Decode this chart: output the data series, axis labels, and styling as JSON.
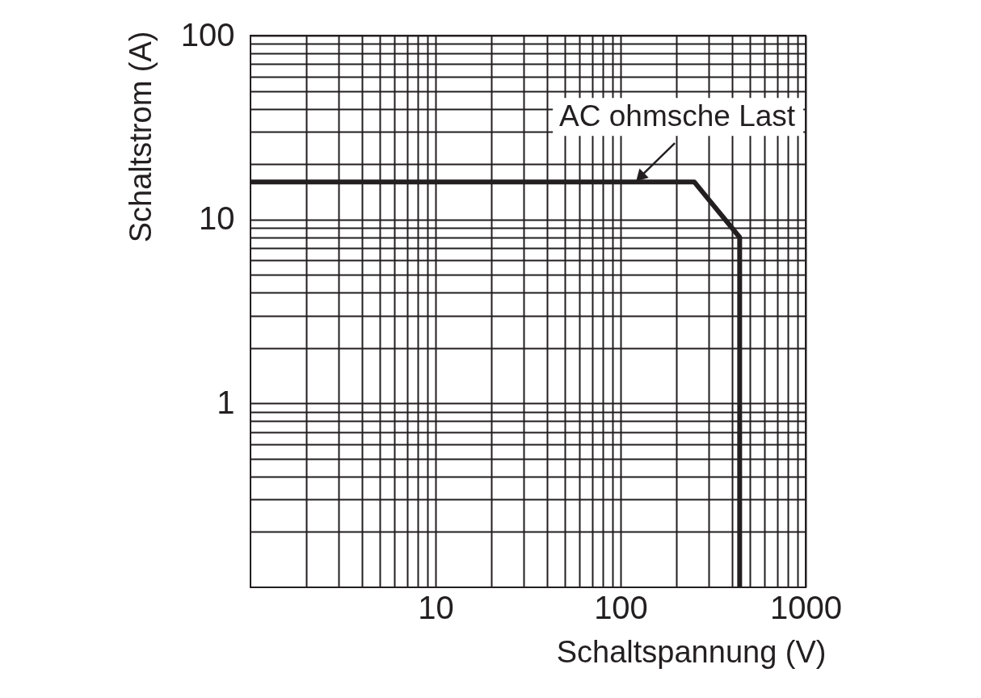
{
  "chart_data": {
    "type": "line",
    "xlabel": "Schaltspannung (V)",
    "ylabel": "Schaltstrom (A)",
    "log": "xy",
    "grid": true,
    "line_style": "solid",
    "x": [
      1,
      250,
      440,
      440
    ],
    "series": [
      {
        "color": "#231f20",
        "values": [
          16,
          16,
          8,
          0.1
        ]
      }
    ],
    "xlim": [
      1,
      1000
    ],
    "ylim": [
      0.1,
      100
    ],
    "xticks": [
      {
        "value": 2,
        "label": null
      },
      {
        "value": 3,
        "label": null
      },
      {
        "value": 4,
        "label": null
      },
      {
        "value": 5,
        "label": null
      },
      {
        "value": 6,
        "label": null
      },
      {
        "value": 7,
        "label": null
      },
      {
        "value": 8,
        "label": null
      },
      {
        "value": 9,
        "label": null
      },
      10,
      {
        "value": 20,
        "label": null
      },
      {
        "value": 30,
        "label": null
      },
      {
        "value": 40,
        "label": null
      },
      {
        "value": 50,
        "label": null
      },
      {
        "value": 60,
        "label": null
      },
      {
        "value": 70,
        "label": null
      },
      {
        "value": 80,
        "label": null
      },
      {
        "value": 90,
        "label": null
      },
      100,
      {
        "value": 200,
        "label": null
      },
      {
        "value": 300,
        "label": null
      },
      {
        "value": 400,
        "label": null
      },
      {
        "value": 500,
        "label": null
      },
      {
        "value": 600,
        "label": null
      },
      {
        "value": 700,
        "label": null
      },
      {
        "value": 800,
        "label": null
      },
      {
        "value": 900,
        "label": null
      },
      1000
    ],
    "yticks": [
      {
        "value": 0.2,
        "label": null
      },
      {
        "value": 0.3,
        "label": null
      },
      {
        "value": 0.4,
        "label": null
      },
      {
        "value": 0.5,
        "label": null
      },
      {
        "value": 0.6,
        "label": null
      },
      {
        "value": 0.7,
        "label": null
      },
      {
        "value": 0.8,
        "label": null
      },
      {
        "value": 0.9,
        "label": null
      },
      1,
      {
        "value": 2,
        "label": null
      },
      {
        "value": 3,
        "label": null
      },
      {
        "value": 4,
        "label": null
      },
      {
        "value": 5,
        "label": null
      },
      {
        "value": 6,
        "label": null
      },
      {
        "value": 7,
        "label": null
      },
      {
        "value": 8,
        "label": null
      },
      {
        "value": 9,
        "label": null
      },
      10,
      {
        "value": 20,
        "label": null
      },
      {
        "value": 30,
        "label": null
      },
      {
        "value": 40,
        "label": null
      },
      {
        "value": 50,
        "label": null
      },
      {
        "value": 60,
        "label": null
      },
      {
        "value": 70,
        "label": null
      },
      {
        "value": 80,
        "label": null
      },
      {
        "value": 90,
        "label": null
      },
      100
    ],
    "annotations": [
      {
        "text": "AC ohmsche Last",
        "x": 120,
        "y": 16
      }
    ]
  }
}
